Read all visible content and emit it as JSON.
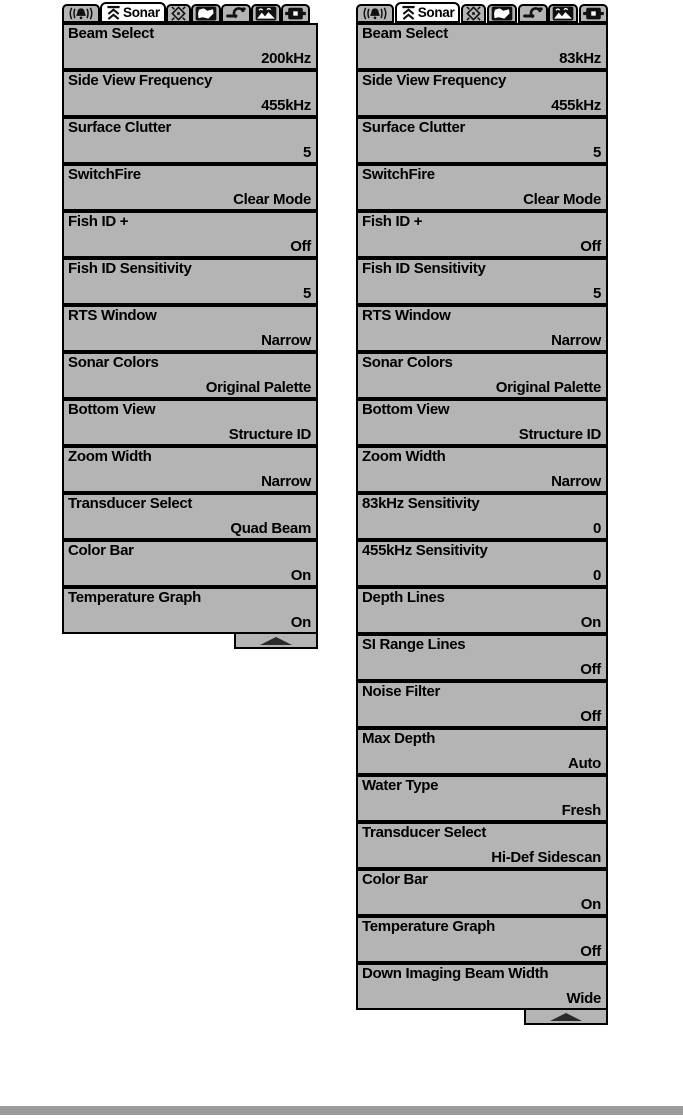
{
  "colors": {
    "menu_bg": "#b4b4b4",
    "selected_tab_bg": "#ffffff",
    "border": "#000000",
    "footer_bar": "#9a9a9a",
    "scroll_arrow": "#2a2a2a"
  },
  "tab_bar": {
    "tabs": [
      {
        "id": "alarms",
        "icon": "alarm-bell-icon",
        "label": "",
        "selected": false
      },
      {
        "id": "sonar",
        "icon": "sonar-beam-icon",
        "label": "Sonar",
        "selected": true
      },
      {
        "id": "navigation",
        "icon": "navigation-star-icon",
        "label": "",
        "selected": false
      },
      {
        "id": "chart",
        "icon": "chart-map-icon",
        "label": "",
        "selected": false
      },
      {
        "id": "setup",
        "icon": "setup-wrench-icon",
        "label": "",
        "selected": false
      },
      {
        "id": "views",
        "icon": "views-mountains-icon",
        "label": "",
        "selected": false
      },
      {
        "id": "accessories",
        "icon": "accessories-plug-icon",
        "label": "",
        "selected": false
      }
    ]
  },
  "panels": [
    {
      "name": "sonar-menu-left",
      "items": [
        {
          "label": "Beam Select",
          "value": "200kHz"
        },
        {
          "label": "Side View Frequency",
          "value": "455kHz"
        },
        {
          "label": "Surface Clutter",
          "value": "5"
        },
        {
          "label": "SwitchFire",
          "value": "Clear Mode"
        },
        {
          "label": "Fish ID +",
          "value": "Off"
        },
        {
          "label": "Fish ID Sensitivity",
          "value": "5"
        },
        {
          "label": "RTS Window",
          "value": "Narrow"
        },
        {
          "label": "Sonar Colors",
          "value": "Original Palette"
        },
        {
          "label": "Bottom View",
          "value": "Structure ID"
        },
        {
          "label": "Zoom Width",
          "value": "Narrow"
        },
        {
          "label": "Transducer Select",
          "value": "Quad Beam"
        },
        {
          "label": "Color Bar",
          "value": "On"
        },
        {
          "label": "Temperature Graph",
          "value": "On"
        }
      ]
    },
    {
      "name": "sonar-menu-right",
      "items": [
        {
          "label": "Beam Select",
          "value": "83kHz"
        },
        {
          "label": "Side View Frequency",
          "value": "455kHz"
        },
        {
          "label": "Surface Clutter",
          "value": "5"
        },
        {
          "label": "SwitchFire",
          "value": "Clear Mode"
        },
        {
          "label": "Fish ID +",
          "value": "Off"
        },
        {
          "label": "Fish ID Sensitivity",
          "value": "5"
        },
        {
          "label": "RTS Window",
          "value": "Narrow"
        },
        {
          "label": "Sonar Colors",
          "value": "Original Palette"
        },
        {
          "label": "Bottom View",
          "value": "Structure ID"
        },
        {
          "label": "Zoom Width",
          "value": "Narrow"
        },
        {
          "label": "83kHz Sensitivity",
          "value": "0"
        },
        {
          "label": "455kHz Sensitivity",
          "value": "0"
        },
        {
          "label": "Depth Lines",
          "value": "On"
        },
        {
          "label": "SI Range Lines",
          "value": "Off"
        },
        {
          "label": "Noise Filter",
          "value": "Off"
        },
        {
          "label": "Max Depth",
          "value": "Auto"
        },
        {
          "label": "Water Type",
          "value": "Fresh"
        },
        {
          "label": "Transducer Select",
          "value": "Hi-Def Sidescan"
        },
        {
          "label": "Color Bar",
          "value": "On"
        },
        {
          "label": "Temperature Graph",
          "value": "Off"
        },
        {
          "label": "Down Imaging Beam Width",
          "value": "Wide"
        }
      ]
    }
  ]
}
